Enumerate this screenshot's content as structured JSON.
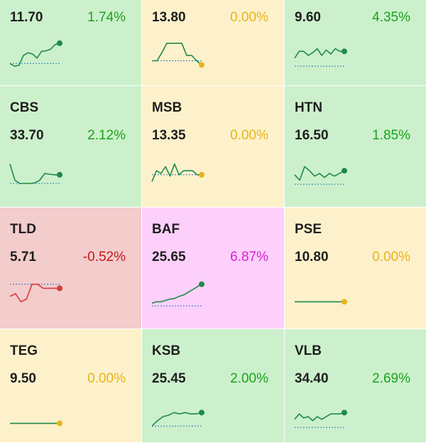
{
  "colors": {
    "up_bg": "#ccf0cc",
    "flat_bg": "#fdf1cb",
    "down_bg": "#f3cccc",
    "ceiling_bg": "#fcd0fb",
    "up_text": "#1aa31a",
    "flat_text": "#e8b41a",
    "down_text": "#c41a1a",
    "ceiling_text": "#d622d6",
    "line_up": "#1f8a4a",
    "line_down": "#d63b3b",
    "ref_line": "#2a7ac0"
  },
  "tiles": [
    {
      "symbol": "",
      "price": "11.70",
      "change": "1.74%",
      "status": "up",
      "spark": {
        "values": [
          0.15,
          0.05,
          0.08,
          0.45,
          0.55,
          0.5,
          0.35,
          0.6,
          0.62,
          0.68,
          0.85,
          0.9
        ],
        "ref": 0.15,
        "end": "up"
      }
    },
    {
      "symbol": "",
      "price": "13.80",
      "change": "0.00%",
      "status": "flat",
      "spark": {
        "values": [
          0.25,
          0.25,
          0.55,
          0.9,
          0.9,
          0.9,
          0.9,
          0.45,
          0.45,
          0.25,
          0.1
        ],
        "ref": 0.25,
        "end": "flat"
      }
    },
    {
      "symbol": "",
      "price": "9.60",
      "change": "4.35%",
      "status": "up",
      "spark": {
        "values": [
          0.35,
          0.6,
          0.6,
          0.45,
          0.55,
          0.7,
          0.45,
          0.65,
          0.5,
          0.7,
          0.6,
          0.6
        ],
        "ref": 0.05,
        "end": "up"
      }
    },
    {
      "symbol": "CBS",
      "price": "33.70",
      "change": "2.12%",
      "status": "up",
      "spark": {
        "values": [
          0.8,
          0.2,
          0.08,
          0.08,
          0.08,
          0.1,
          0.2,
          0.45,
          0.42,
          0.4,
          0.4
        ],
        "ref": 0.08,
        "end": "up"
      }
    },
    {
      "symbol": "MSB",
      "price": "13.35",
      "change": "0.00%",
      "status": "flat",
      "spark": {
        "values": [
          0.15,
          0.55,
          0.45,
          0.7,
          0.35,
          0.8,
          0.4,
          0.55,
          0.55,
          0.55,
          0.4,
          0.4
        ],
        "ref": 0.4,
        "end": "flat"
      }
    },
    {
      "symbol": "HTN",
      "price": "16.50",
      "change": "1.85%",
      "status": "up",
      "spark": {
        "values": [
          0.4,
          0.2,
          0.7,
          0.55,
          0.35,
          0.45,
          0.3,
          0.45,
          0.35,
          0.45,
          0.55
        ],
        "ref": 0.05,
        "end": "up"
      }
    },
    {
      "symbol": "TLD",
      "price": "5.71",
      "change": "-0.52%",
      "status": "down",
      "spark": {
        "values": [
          0.4,
          0.5,
          0.2,
          0.3,
          0.85,
          0.85,
          0.7,
          0.7,
          0.7,
          0.7
        ],
        "ref": 0.85,
        "end": "down"
      }
    },
    {
      "symbol": "BAF",
      "price": "25.65",
      "change": "6.87%",
      "status": "ceiling",
      "spark": {
        "values": [
          0.15,
          0.2,
          0.2,
          0.25,
          0.3,
          0.32,
          0.4,
          0.45,
          0.55,
          0.65,
          0.75,
          0.85
        ],
        "ref": 0.05,
        "end": "up"
      }
    },
    {
      "symbol": "PSE",
      "price": "10.80",
      "change": "0.00%",
      "status": "flat",
      "spark": {
        "values": [
          0.2,
          0.2,
          0.2,
          0.2,
          0.2,
          0.2,
          0.2,
          0.2,
          0.2,
          0.2
        ],
        "ref": 0.2,
        "end": "flat"
      }
    },
    {
      "symbol": "TEG",
      "price": "9.50",
      "change": "0.00%",
      "status": "flat",
      "spark": {
        "values": [
          0.2,
          0.2,
          0.2,
          0.2,
          0.2,
          0.2,
          0.2,
          0.2,
          0.2,
          0.2
        ],
        "ref": 0.2,
        "end": "flat"
      }
    },
    {
      "symbol": "KSB",
      "price": "25.45",
      "change": "2.00%",
      "status": "up",
      "spark": {
        "values": [
          0.1,
          0.3,
          0.45,
          0.5,
          0.6,
          0.55,
          0.6,
          0.55,
          0.55,
          0.6
        ],
        "ref": 0.1,
        "end": "up"
      }
    },
    {
      "symbol": "VLB",
      "price": "34.40",
      "change": "2.69%",
      "status": "up",
      "spark": {
        "values": [
          0.35,
          0.55,
          0.4,
          0.45,
          0.3,
          0.45,
          0.35,
          0.45,
          0.55,
          0.55,
          0.55,
          0.6
        ],
        "ref": 0.05,
        "end": "up"
      }
    }
  ]
}
